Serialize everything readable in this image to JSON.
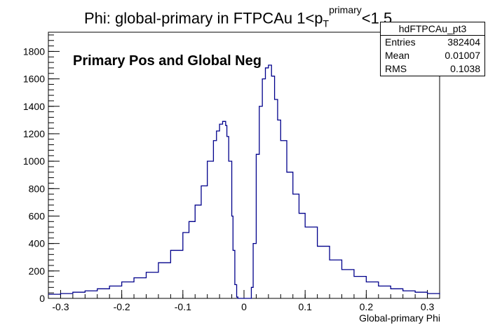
{
  "chart_data": {
    "type": "histogram",
    "title": {
      "main": "Phi: global-primary in FTPCAu 1<p",
      "sup": "primary",
      "sub": "T",
      "tail": "<1.5"
    },
    "annotation": "Primary Pos and Global Neg",
    "xlabel": "Global-primary Phi",
    "ylabel": "",
    "xlim": [
      -0.32,
      0.32
    ],
    "ylim": [
      0,
      1940
    ],
    "x_ticks": [
      -0.3,
      -0.2,
      -0.1,
      0,
      0.1,
      0.2,
      0.3
    ],
    "x_tick_labels": [
      "-0.3",
      "-0.2",
      "-0.1",
      "0",
      "0.1",
      "0.2",
      "0.3"
    ],
    "y_ticks": [
      0,
      200,
      400,
      600,
      800,
      1000,
      1200,
      1400,
      1600,
      1800
    ],
    "y_tick_labels": [
      "0",
      "200",
      "400",
      "600",
      "800",
      "1000",
      "1200",
      "1400",
      "1600",
      "1800"
    ],
    "grid": false,
    "line_color": "#00008b",
    "series": [
      {
        "x": [
          -0.32,
          -0.3,
          -0.28,
          -0.26,
          -0.24,
          -0.22,
          -0.2,
          -0.18,
          -0.16,
          -0.14,
          -0.12,
          -0.1,
          -0.09,
          -0.08,
          -0.07,
          -0.06,
          -0.05,
          -0.045,
          -0.04,
          -0.035,
          -0.03,
          -0.028,
          -0.025,
          -0.02,
          -0.018,
          -0.015,
          -0.012,
          -0.01,
          0.0,
          0.01,
          0.012,
          0.015,
          0.02,
          0.025,
          0.03,
          0.035,
          0.04,
          0.045,
          0.05,
          0.055,
          0.06,
          0.07,
          0.08,
          0.09,
          0.1,
          0.12,
          0.14,
          0.16,
          0.18,
          0.2,
          0.22,
          0.24,
          0.26,
          0.28,
          0.3,
          0.32
        ],
        "values": [
          30,
          35,
          45,
          55,
          70,
          90,
          120,
          150,
          190,
          260,
          350,
          480,
          560,
          680,
          820,
          1000,
          1150,
          1220,
          1270,
          1290,
          1260,
          1180,
          1000,
          600,
          350,
          100,
          10,
          0,
          0,
          0,
          80,
          400,
          1050,
          1400,
          1600,
          1680,
          1700,
          1620,
          1450,
          1300,
          1150,
          920,
          760,
          620,
          520,
          380,
          280,
          210,
          160,
          120,
          90,
          70,
          55,
          45,
          35,
          30
        ]
      }
    ]
  },
  "stats": {
    "name": "hdFTPCAu_pt3",
    "rows": [
      {
        "label": "Entries",
        "value": "382404"
      },
      {
        "label": "Mean",
        "value": "0.01007"
      },
      {
        "label": "RMS",
        "value": "0.1038"
      }
    ]
  }
}
